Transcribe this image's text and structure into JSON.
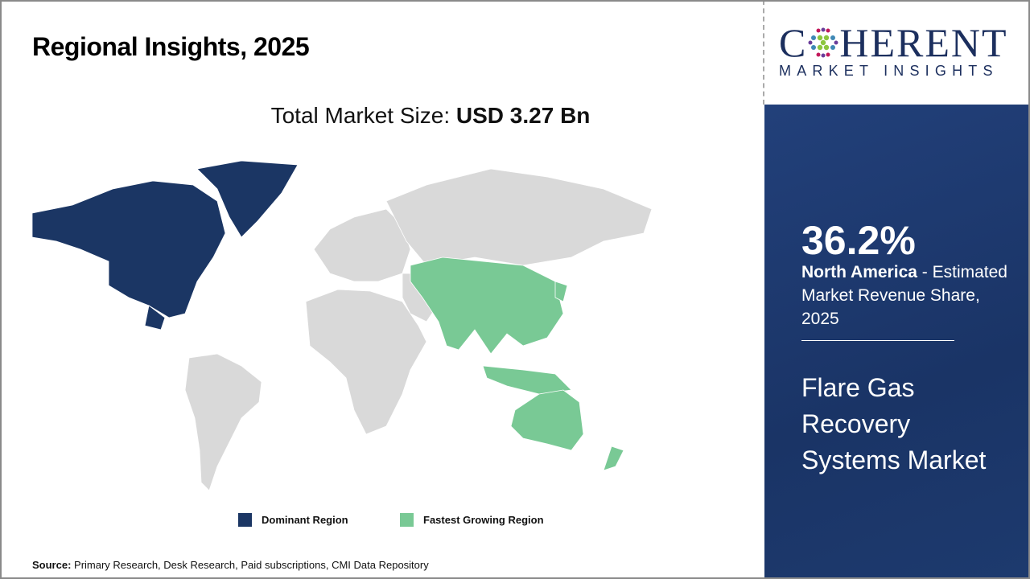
{
  "header": {
    "title": "Regional Insights, 2025"
  },
  "total": {
    "label": "Total Market Size: ",
    "value": "USD 3.27 Bn"
  },
  "map": {
    "dominant_region": "North America",
    "fastest_growing_region": "Asia Pacific",
    "colors": {
      "dominant": "#1b3664",
      "fastest": "#79c995",
      "other": "#d9d9d9"
    }
  },
  "legend": {
    "dominant": "Dominant Region",
    "fastest": "Fastest Growing Region"
  },
  "source": {
    "label": "Source:",
    "text": " Primary Research, Desk Research, Paid subscriptions, CMI Data Repository"
  },
  "logo": {
    "line1_a": "C",
    "line1_b": "HERENT",
    "line2": "MARKET INSIGHTS"
  },
  "panel": {
    "share": "36.2%",
    "region": "North America",
    "desc": " - Estimated Market Revenue Share, 2025",
    "market": "Flare Gas Recovery Systems Market"
  }
}
